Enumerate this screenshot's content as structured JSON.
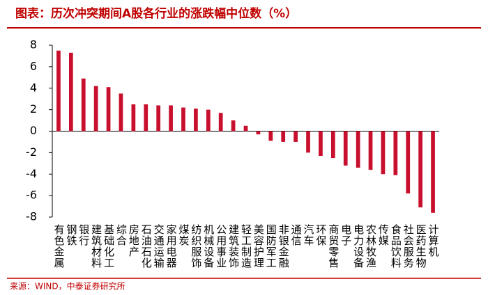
{
  "chart_data": {
    "type": "bar",
    "title": "图表：历次冲突期间A股各行业的涨跌幅中位数（%）",
    "source": "来源：WIND，中泰证券研究所",
    "categories": [
      "有色金属",
      "钢铁",
      "银行",
      "建筑材料",
      "基础化工",
      "综合",
      "房地产",
      "石油石化",
      "交通运输",
      "家用电器",
      "煤炭",
      "纺织服饰",
      "机械设备",
      "公用事业",
      "建筑装饰",
      "轻工制造",
      "美容护理",
      "国防军工",
      "非银金融",
      "通信",
      "汽车",
      "环保",
      "商贸零售",
      "电子",
      "电力设备",
      "农林牧渔",
      "传媒",
      "食品饮料",
      "社会服务",
      "医药生物",
      "计算机"
    ],
    "values": [
      7.5,
      7.3,
      4.9,
      4.2,
      4.1,
      3.5,
      2.5,
      2.5,
      2.4,
      2.4,
      2.2,
      2.1,
      2.0,
      1.7,
      1.0,
      0.5,
      -0.3,
      -0.9,
      -1.0,
      -1.0,
      -2.0,
      -2.3,
      -2.5,
      -3.2,
      -3.4,
      -3.6,
      -4.0,
      -4.1,
      -5.8,
      -7.1,
      -7.6
    ],
    "color": "#c8102e",
    "ylim": [
      -8,
      8
    ],
    "yticks": [
      -8,
      -6,
      -4,
      -2,
      0,
      2,
      4,
      6,
      8
    ],
    "grid": false
  }
}
